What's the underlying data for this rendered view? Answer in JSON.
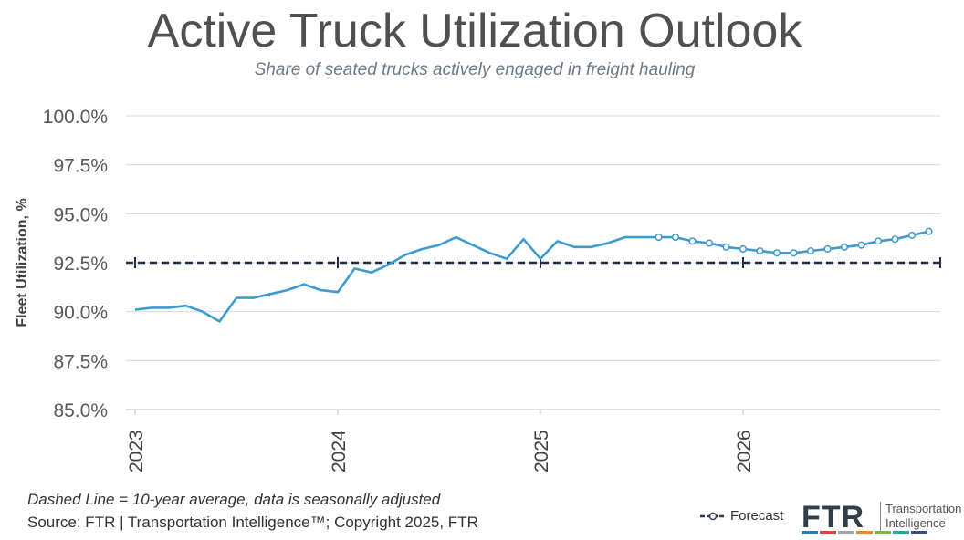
{
  "header": {
    "title": "Active Truck Utilization Outlook",
    "subtitle": "Share of seated trucks actively engaged in freight hauling"
  },
  "footer": {
    "note": "Dashed Line = 10-year average, data is seasonally adjusted",
    "source": "Source: FTR | Transportation Intelligence™; Copyright 2025, FTR"
  },
  "legend": {
    "forecast_label": "Forecast"
  },
  "logo": {
    "mark": "FTR",
    "line1": "Transportation",
    "line2": "Intelligence"
  },
  "chart_data": {
    "type": "line",
    "title": "Active Truck Utilization Outlook",
    "subtitle": "Share of seated trucks actively engaged in freight hauling",
    "ylabel": "Fleet Utilization, %",
    "xlabel": "",
    "ylim": [
      85.0,
      100.0
    ],
    "y_ticks": [
      "100.0%",
      "97.5%",
      "95.0%",
      "92.5%",
      "90.0%",
      "87.5%",
      "85.0%"
    ],
    "y_tick_values": [
      100.0,
      97.5,
      95.0,
      92.5,
      90.0,
      87.5,
      85.0
    ],
    "x_tick_labels": [
      "2023",
      "2024",
      "2025",
      "2026"
    ],
    "grid": "horizontal",
    "ten_year_average": 92.5,
    "colors": {
      "line": "#3d9bd0",
      "average": "#1f2d4d",
      "grid": "#d9d9d9",
      "text": "#595959"
    },
    "series": [
      {
        "kind": "actual",
        "x": [
          "2023-01",
          "2023-02",
          "2023-03",
          "2023-04",
          "2023-05",
          "2023-06",
          "2023-07",
          "2023-08",
          "2023-09",
          "2023-10",
          "2023-11",
          "2023-12",
          "2024-01",
          "2024-02",
          "2024-03",
          "2024-04",
          "2024-05",
          "2024-06",
          "2024-07",
          "2024-08",
          "2024-09",
          "2024-10",
          "2024-11",
          "2024-12",
          "2025-01",
          "2025-02",
          "2025-03",
          "2025-04",
          "2025-05",
          "2025-06",
          "2025-07",
          "2025-08"
        ],
        "values": [
          90.1,
          90.2,
          90.2,
          90.3,
          90.0,
          89.5,
          90.7,
          90.7,
          90.9,
          91.1,
          91.4,
          91.1,
          91.0,
          92.2,
          92.0,
          92.4,
          92.9,
          93.2,
          93.4,
          93.8,
          93.4,
          93.0,
          92.7,
          93.7,
          92.7,
          93.6,
          93.3,
          93.3,
          93.5,
          93.8,
          93.8,
          93.8
        ]
      },
      {
        "name": "Forecast",
        "kind": "forecast",
        "x": [
          "2025-08",
          "2025-09",
          "2025-10",
          "2025-11",
          "2025-12",
          "2026-01",
          "2026-02",
          "2026-03",
          "2026-04",
          "2026-05",
          "2026-06",
          "2026-07",
          "2026-08",
          "2026-09",
          "2026-10",
          "2026-11",
          "2026-12"
        ],
        "values": [
          93.8,
          93.8,
          93.6,
          93.5,
          93.3,
          93.2,
          93.1,
          93.0,
          93.0,
          93.1,
          93.2,
          93.3,
          93.4,
          93.6,
          93.7,
          93.9,
          94.1
        ]
      }
    ]
  }
}
